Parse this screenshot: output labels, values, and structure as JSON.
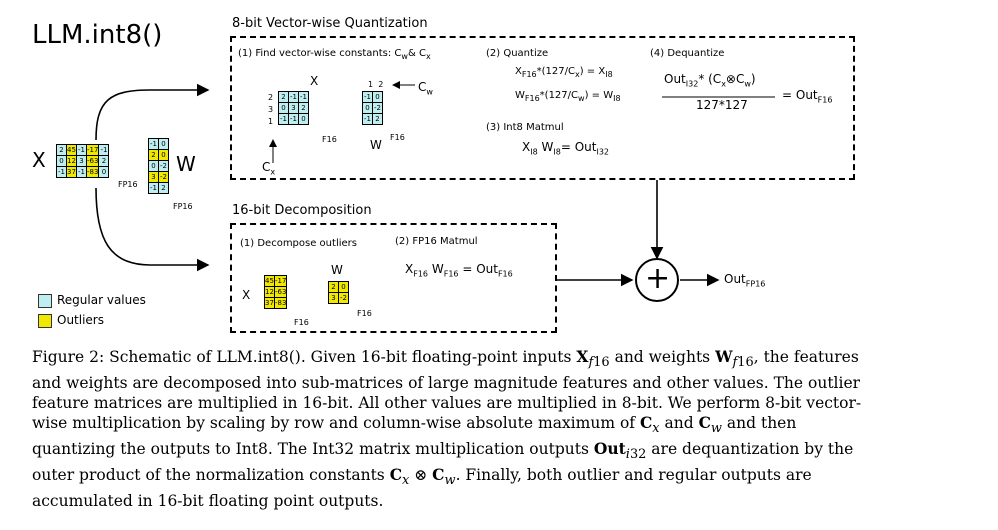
{
  "title": "LLM.int8()",
  "quant": {
    "section_title": "8-bit Vector-wise Quantization",
    "step1": "(1) Find vector-wise constants: C",
    "step1_sub_w": "w",
    "step1_amp": "& C",
    "step1_sub_x": "x",
    "step2": "(2) Quantize",
    "step2_line1_a": "X",
    "step2_line1_sub": "F16",
    "step2_line1_b": "*(127/C",
    "step2_line1_c": "x",
    "step2_line1_d": ") = X",
    "step2_line1_e": "I8",
    "step2_line2_a": "W",
    "step2_line2_sub": "F16",
    "step2_line2_b": "*(127/C",
    "step2_line2_c": "w",
    "step2_line2_d": ") = W",
    "step2_line2_e": "I8",
    "step3": "(3) Int8 Matmul",
    "step3_a": "X",
    "step3_b": "I8",
    "step3_c": "W",
    "step3_d": "I8",
    "step3_e": "= Out",
    "step3_f": "I32",
    "step4": "(4) Dequantize",
    "step4_num_a": "Out",
    "step4_num_sub": "I32",
    "step4_num_b": "* (C",
    "step4_num_c": "x",
    "step4_num_d": "⊗C",
    "step4_num_e": "w",
    "step4_num_f": ")",
    "step4_den": "127*127",
    "step4_eq": "= Out",
    "step4_eq_sub": "F16",
    "x_label": "X",
    "w_label": "W",
    "cw_label": "C",
    "cw_sub": "w",
    "cx_label": "C",
    "cx_sub": "x",
    "f16": "F16",
    "x_rows": [
      "2",
      "3",
      "1"
    ],
    "w_cols": [
      "1",
      "2"
    ],
    "x_grid": [
      [
        "2",
        "-1",
        "-1"
      ],
      [
        "0",
        "3",
        "2"
      ],
      [
        "-1",
        "-1",
        "0"
      ]
    ],
    "w_grid": [
      [
        "-1",
        "0"
      ],
      [
        "0",
        "-2"
      ],
      [
        "-1",
        "2"
      ]
    ]
  },
  "decomp": {
    "section_title": "16-bit Decomposition",
    "step1": "(1) Decompose outliers",
    "step2": "(2) FP16 Matmul",
    "x_label": "X",
    "w_label": "W",
    "mm_a": "X",
    "mm_b": "F16",
    "mm_c": "W",
    "mm_d": "F16",
    "mm_e": "= Out",
    "mm_f": "F16",
    "f16": "F16",
    "x_grid": [
      [
        "45",
        "-17"
      ],
      [
        "12",
        "-63"
      ],
      [
        "37",
        "-83"
      ]
    ],
    "w_grid": [
      [
        "2",
        "0"
      ],
      [
        "3",
        "-2"
      ]
    ]
  },
  "left": {
    "x_label": "X",
    "w_label": "W",
    "fp16": "FP16",
    "x_grid": [
      [
        "2",
        "45",
        "-1",
        "-17",
        "-1"
      ],
      [
        "0",
        "12",
        "3",
        "-63",
        "2"
      ],
      [
        "-1",
        "37",
        "-1",
        "-83",
        "0"
      ]
    ],
    "x_types": [
      [
        "r",
        "o",
        "r",
        "o",
        "r"
      ],
      [
        "r",
        "o",
        "r",
        "o",
        "r"
      ],
      [
        "r",
        "o",
        "r",
        "o",
        "r"
      ]
    ],
    "w_grid": [
      [
        "-1",
        "0"
      ],
      [
        "2",
        "0"
      ],
      [
        "0",
        "-2"
      ],
      [
        "3",
        "-2"
      ],
      [
        "-1",
        "2"
      ]
    ],
    "w_types": [
      [
        "r",
        "r"
      ],
      [
        "o",
        "o"
      ],
      [
        "r",
        "r"
      ],
      [
        "o",
        "o"
      ],
      [
        "r",
        "r"
      ]
    ]
  },
  "legend": {
    "regular": "Regular values",
    "outliers": "Outliers",
    "regular_color": "#bfeef0",
    "outlier_color": "#f0e800"
  },
  "output": {
    "plus": "+",
    "label": "Out",
    "sub": "FP16"
  },
  "caption": {
    "text": "Figure 2: Schematic of LLM.int8(). Given 16-bit floating-point inputs X_f16 and weights W_f16, the features and weights are decomposed into sub-matrices of large magnitude features and other values. The outlier feature matrices are multiplied in 16-bit. All other values are multiplied in 8-bit. We perform 8-bit vector-wise multiplication by scaling by row and column-wise absolute maximum of C_x and C_w and then quantizing the outputs to Int8. The Int32 matrix multiplication outputs Out_i32 are dequantization by the outer product of the normalization constants C_x ⊗ C_w. Finally, both outlier and regular outputs are accumulated in 16-bit floating point outputs."
  }
}
